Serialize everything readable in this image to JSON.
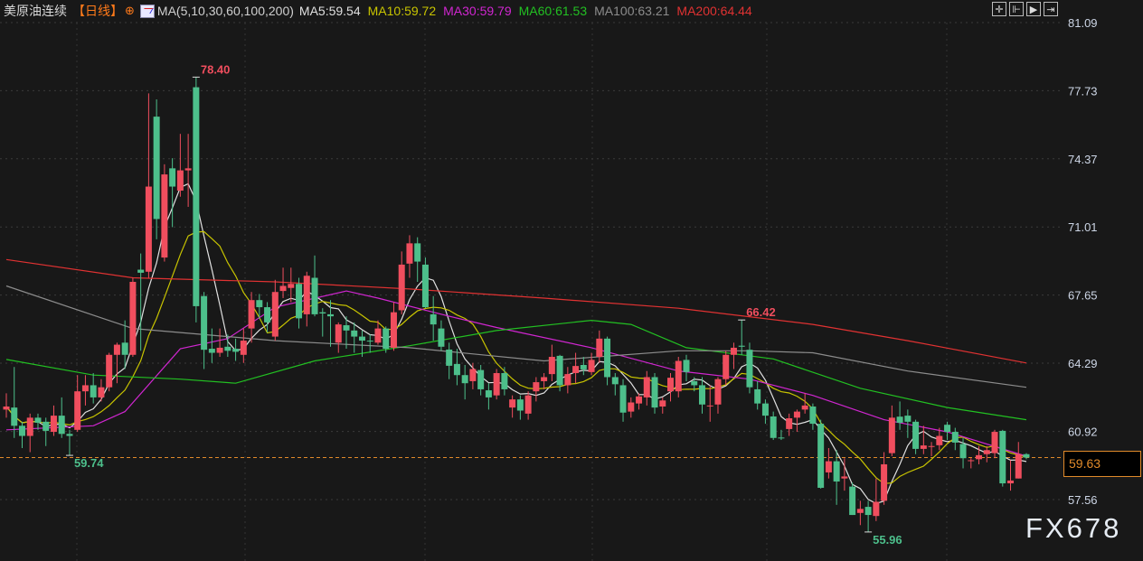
{
  "header": {
    "title": "美原油连续",
    "period": "【日线】",
    "ma_spec": "MA(5,10,30,60,100,200)",
    "ma_values": [
      {
        "label": "MA5:59.54",
        "color": "#e0e0e0"
      },
      {
        "label": "MA10:59.72",
        "color": "#c8c400"
      },
      {
        "label": "MA30:59.79",
        "color": "#d026d0"
      },
      {
        "label": "MA60:61.53",
        "color": "#22c022"
      },
      {
        "label": "MA100:63.21",
        "color": "#8c8c8c"
      },
      {
        "label": "MA200:64.44",
        "color": "#e03232"
      }
    ]
  },
  "toolbar": {
    "icons": [
      "crosshair-icon",
      "zoom-start-icon",
      "play-step-icon",
      "exit-icon"
    ],
    "glyphs": [
      "✛",
      "⊩",
      "▶",
      "⇥"
    ]
  },
  "current_price": "59.63",
  "watermark": "FX678",
  "chart_data": {
    "type": "candlestick",
    "instrument": "美原油连续",
    "period": "日线",
    "y_ticks": [
      "81.09",
      "77.73",
      "74.37",
      "71.01",
      "67.65",
      "64.29",
      "60.92",
      "57.56"
    ],
    "ylim": [
      57.56,
      81.09
    ],
    "grid": true,
    "colors": {
      "up": "#f04e5e",
      "down": "#4dbf8b",
      "current_line": "#e08a2a"
    },
    "annotations": [
      {
        "text": "78.40",
        "value": 78.4,
        "index": 24,
        "color": "#f04e5e"
      },
      {
        "text": "66.42",
        "value": 66.42,
        "index": 93,
        "color": "#f04e5e"
      },
      {
        "text": "59.74",
        "value": 59.74,
        "index": 8,
        "color": "#4dbf8b"
      },
      {
        "text": "55.96",
        "value": 55.96,
        "index": 109,
        "color": "#4dbf8b"
      }
    ],
    "ohlc": [
      [
        62.0,
        62.8,
        61.6,
        62.15
      ],
      [
        62.1,
        64.1,
        60.6,
        61.2
      ],
      [
        61.2,
        61.4,
        60.1,
        60.7
      ],
      [
        60.7,
        61.8,
        59.9,
        61.6
      ],
      [
        61.6,
        61.8,
        61.0,
        61.35
      ],
      [
        61.4,
        61.6,
        60.2,
        60.95
      ],
      [
        60.9,
        62.2,
        60.7,
        61.7
      ],
      [
        61.7,
        62.6,
        60.6,
        60.8
      ],
      [
        60.8,
        61.0,
        59.74,
        60.7
      ],
      [
        61.0,
        63.7,
        60.9,
        62.9
      ],
      [
        62.9,
        63.7,
        62.2,
        63.2
      ],
      [
        63.2,
        63.8,
        62.3,
        62.6
      ],
      [
        62.6,
        63.5,
        62.4,
        63.1
      ],
      [
        63.1,
        64.8,
        62.9,
        64.7
      ],
      [
        64.7,
        65.3,
        63.3,
        65.2
      ],
      [
        65.3,
        66.4,
        64.0,
        64.7
      ],
      [
        64.7,
        68.5,
        64.6,
        68.3
      ],
      [
        68.9,
        69.7,
        64.9,
        68.75
      ],
      [
        68.8,
        77.6,
        68.5,
        73.0
      ],
      [
        76.45,
        77.3,
        70.4,
        71.4
      ],
      [
        69.5,
        74.1,
        69.3,
        73.6
      ],
      [
        73.9,
        74.4,
        71.0,
        73.0
      ],
      [
        72.8,
        75.6,
        72.5,
        73.8
      ],
      [
        73.8,
        75.6,
        72.0,
        73.9
      ],
      [
        77.9,
        78.4,
        66.3,
        67.1
      ],
      [
        67.6,
        67.8,
        64.0,
        64.95
      ],
      [
        65.0,
        66.0,
        64.3,
        64.8
      ],
      [
        64.8,
        66.0,
        64.6,
        65.05
      ],
      [
        65.1,
        65.7,
        64.6,
        64.9
      ],
      [
        65.0,
        65.5,
        64.4,
        64.85
      ],
      [
        64.7,
        66.0,
        64.3,
        65.4
      ],
      [
        66.0,
        67.8,
        65.3,
        67.4
      ],
      [
        67.4,
        67.7,
        66.5,
        67.05
      ],
      [
        67.05,
        67.3,
        65.8,
        66.3
      ],
      [
        65.6,
        68.4,
        65.4,
        67.8
      ],
      [
        67.85,
        69.0,
        67.5,
        68.1
      ],
      [
        68.0,
        69.0,
        67.3,
        68.2
      ],
      [
        68.2,
        68.5,
        66.0,
        66.5
      ],
      [
        66.7,
        68.8,
        66.1,
        68.6
      ],
      [
        68.5,
        69.6,
        66.6,
        66.7
      ],
      [
        66.8,
        67.0,
        65.6,
        66.74
      ],
      [
        66.7,
        67.4,
        65.1,
        66.6
      ],
      [
        65.3,
        66.3,
        64.8,
        66.2
      ],
      [
        66.16,
        66.6,
        65.0,
        65.9
      ],
      [
        65.9,
        66.3,
        64.8,
        65.6
      ],
      [
        65.6,
        65.9,
        64.6,
        65.4
      ],
      [
        65.4,
        65.7,
        64.8,
        65.36
      ],
      [
        65.3,
        66.4,
        65.2,
        66.0
      ],
      [
        66.0,
        66.1,
        64.8,
        65.0
      ],
      [
        65.05,
        67.3,
        64.9,
        66.8
      ],
      [
        66.9,
        69.8,
        66.7,
        69.15
      ],
      [
        69.2,
        70.6,
        68.5,
        70.2
      ],
      [
        70.2,
        70.5,
        68.3,
        69.3
      ],
      [
        69.15,
        69.5,
        67.0,
        67.05
      ],
      [
        66.7,
        67.6,
        65.4,
        66.2
      ],
      [
        66.0,
        66.4,
        64.9,
        65.1
      ],
      [
        64.96,
        65.3,
        63.5,
        64.16
      ],
      [
        64.25,
        65.0,
        63.2,
        63.7
      ],
      [
        63.7,
        64.2,
        62.5,
        63.3
      ],
      [
        63.4,
        64.3,
        63.0,
        64.0
      ],
      [
        63.95,
        64.2,
        62.7,
        63.0
      ],
      [
        62.95,
        63.3,
        62.0,
        62.6
      ],
      [
        62.7,
        64.0,
        62.5,
        63.8
      ],
      [
        63.8,
        64.1,
        62.7,
        63.0
      ],
      [
        62.1,
        62.7,
        61.6,
        62.5
      ],
      [
        62.5,
        62.7,
        61.5,
        61.95
      ],
      [
        61.8,
        62.9,
        61.5,
        62.7
      ],
      [
        62.9,
        63.6,
        62.4,
        63.35
      ],
      [
        63.4,
        63.8,
        63.0,
        63.6
      ],
      [
        63.75,
        65.2,
        63.4,
        64.6
      ],
      [
        64.65,
        64.7,
        62.9,
        63.2
      ],
      [
        63.2,
        64.1,
        62.8,
        63.75
      ],
      [
        63.8,
        64.8,
        63.3,
        64.15
      ],
      [
        64.2,
        64.6,
        63.7,
        63.98
      ],
      [
        63.85,
        64.8,
        63.7,
        64.45
      ],
      [
        64.6,
        65.9,
        64.3,
        65.5
      ],
      [
        65.5,
        65.6,
        63.2,
        63.6
      ],
      [
        63.6,
        63.8,
        62.7,
        63.25
      ],
      [
        63.2,
        63.5,
        61.4,
        61.85
      ],
      [
        61.9,
        62.6,
        61.6,
        62.35
      ],
      [
        62.3,
        62.8,
        62.0,
        62.65
      ],
      [
        62.6,
        63.9,
        62.2,
        63.6
      ],
      [
        63.6,
        63.8,
        61.8,
        62.1
      ],
      [
        62.15,
        62.6,
        61.8,
        62.45
      ],
      [
        62.9,
        63.8,
        62.4,
        63.57
      ],
      [
        62.9,
        64.6,
        62.6,
        64.4
      ],
      [
        64.45,
        64.7,
        63.4,
        63.85
      ],
      [
        63.4,
        63.6,
        62.9,
        63.2
      ],
      [
        63.2,
        63.6,
        61.8,
        62.25
      ],
      [
        62.2,
        63.2,
        61.4,
        62.2
      ],
      [
        62.25,
        63.6,
        61.8,
        63.5
      ],
      [
        63.5,
        64.9,
        63.2,
        64.7
      ],
      [
        64.7,
        65.3,
        64.0,
        65.05
      ],
      [
        65.15,
        66.42,
        64.7,
        65.1
      ],
      [
        64.95,
        65.3,
        62.8,
        63.1
      ],
      [
        63.0,
        63.4,
        62.0,
        62.3
      ],
      [
        62.3,
        62.5,
        61.3,
        61.7
      ],
      [
        61.66,
        61.9,
        60.5,
        60.6
      ],
      [
        60.62,
        61.0,
        60.5,
        60.58
      ],
      [
        61.04,
        61.8,
        60.7,
        61.57
      ],
      [
        61.6,
        62.0,
        60.9,
        61.9
      ],
      [
        62.0,
        62.8,
        61.8,
        62.2
      ],
      [
        62.15,
        62.3,
        61.0,
        61.3
      ],
      [
        61.3,
        61.5,
        58.1,
        58.14
      ],
      [
        58.9,
        60.1,
        58.6,
        59.45
      ],
      [
        59.45,
        60.0,
        57.3,
        58.45
      ],
      [
        58.6,
        59.6,
        58.0,
        58.7
      ],
      [
        58.2,
        58.4,
        56.8,
        56.8
      ],
      [
        56.9,
        57.5,
        56.3,
        57.1
      ],
      [
        57.2,
        57.5,
        55.96,
        56.8
      ],
      [
        56.75,
        58.6,
        56.5,
        57.45
      ],
      [
        57.5,
        59.9,
        57.3,
        59.3
      ],
      [
        59.85,
        62.2,
        59.7,
        61.6
      ],
      [
        61.65,
        62.4,
        61.0,
        61.35
      ],
      [
        61.7,
        62.0,
        60.6,
        61.4
      ],
      [
        61.4,
        61.5,
        59.8,
        60.06
      ],
      [
        60.06,
        61.2,
        59.8,
        60.23
      ],
      [
        60.2,
        60.4,
        59.7,
        60.2
      ],
      [
        60.24,
        61.1,
        60.0,
        60.7
      ],
      [
        61.25,
        61.4,
        60.5,
        60.9
      ],
      [
        60.9,
        61.1,
        60.0,
        60.37
      ],
      [
        60.3,
        60.6,
        59.1,
        59.6
      ],
      [
        59.5,
        59.6,
        59.1,
        59.5
      ],
      [
        59.55,
        60.2,
        59.3,
        59.75
      ],
      [
        59.8,
        60.2,
        59.4,
        60.0
      ],
      [
        59.85,
        61.0,
        59.6,
        60.9
      ],
      [
        60.95,
        61.0,
        58.2,
        58.36
      ],
      [
        58.36,
        59.5,
        58.0,
        58.5
      ],
      [
        58.6,
        60.4,
        58.6,
        59.8
      ],
      [
        59.8,
        59.85,
        59.55,
        59.63
      ]
    ],
    "moving_averages": [
      {
        "name": "MA5",
        "period": 5,
        "color": "#e0e0e0"
      },
      {
        "name": "MA10",
        "period": 10,
        "color": "#c8c400"
      },
      {
        "name": "MA30",
        "color": "#d026d0",
        "points": [
          [
            0,
            61.0
          ],
          [
            11,
            61.2
          ],
          [
            15,
            61.9
          ],
          [
            22,
            65.0
          ],
          [
            28,
            65.5
          ],
          [
            34,
            67.05
          ],
          [
            43,
            67.85
          ],
          [
            47,
            67.5
          ],
          [
            56,
            66.6
          ],
          [
            62,
            66.05
          ],
          [
            74,
            65.05
          ],
          [
            85,
            63.9
          ],
          [
            94,
            63.5
          ],
          [
            102,
            62.7
          ],
          [
            111,
            61.5
          ],
          [
            119,
            60.9
          ],
          [
            129,
            59.7
          ]
        ]
      },
      {
        "name": "MA60",
        "color": "#22c022",
        "points": [
          [
            0,
            64.47
          ],
          [
            11,
            63.7
          ],
          [
            22,
            63.5
          ],
          [
            29,
            63.3
          ],
          [
            39,
            64.4
          ],
          [
            51,
            65.15
          ],
          [
            62,
            65.9
          ],
          [
            74,
            66.4
          ],
          [
            79,
            66.2
          ],
          [
            86,
            65.05
          ],
          [
            97,
            64.5
          ],
          [
            108,
            63.05
          ],
          [
            119,
            62.1
          ],
          [
            129,
            61.5
          ]
        ]
      },
      {
        "name": "MA100",
        "color": "#8c8c8c",
        "points": [
          [
            0,
            68.1
          ],
          [
            16,
            66.0
          ],
          [
            34,
            65.4
          ],
          [
            51,
            65.05
          ],
          [
            68,
            64.4
          ],
          [
            85,
            64.9
          ],
          [
            94,
            64.9
          ],
          [
            102,
            64.8
          ],
          [
            114,
            63.9
          ],
          [
            129,
            63.1
          ]
        ]
      },
      {
        "name": "MA200",
        "color": "#e03232",
        "points": [
          [
            0,
            69.4
          ],
          [
            16,
            68.5
          ],
          [
            34,
            68.3
          ],
          [
            51,
            67.95
          ],
          [
            68,
            67.5
          ],
          [
            85,
            67.0
          ],
          [
            102,
            66.2
          ],
          [
            114,
            65.4
          ],
          [
            129,
            64.3
          ]
        ]
      }
    ]
  }
}
